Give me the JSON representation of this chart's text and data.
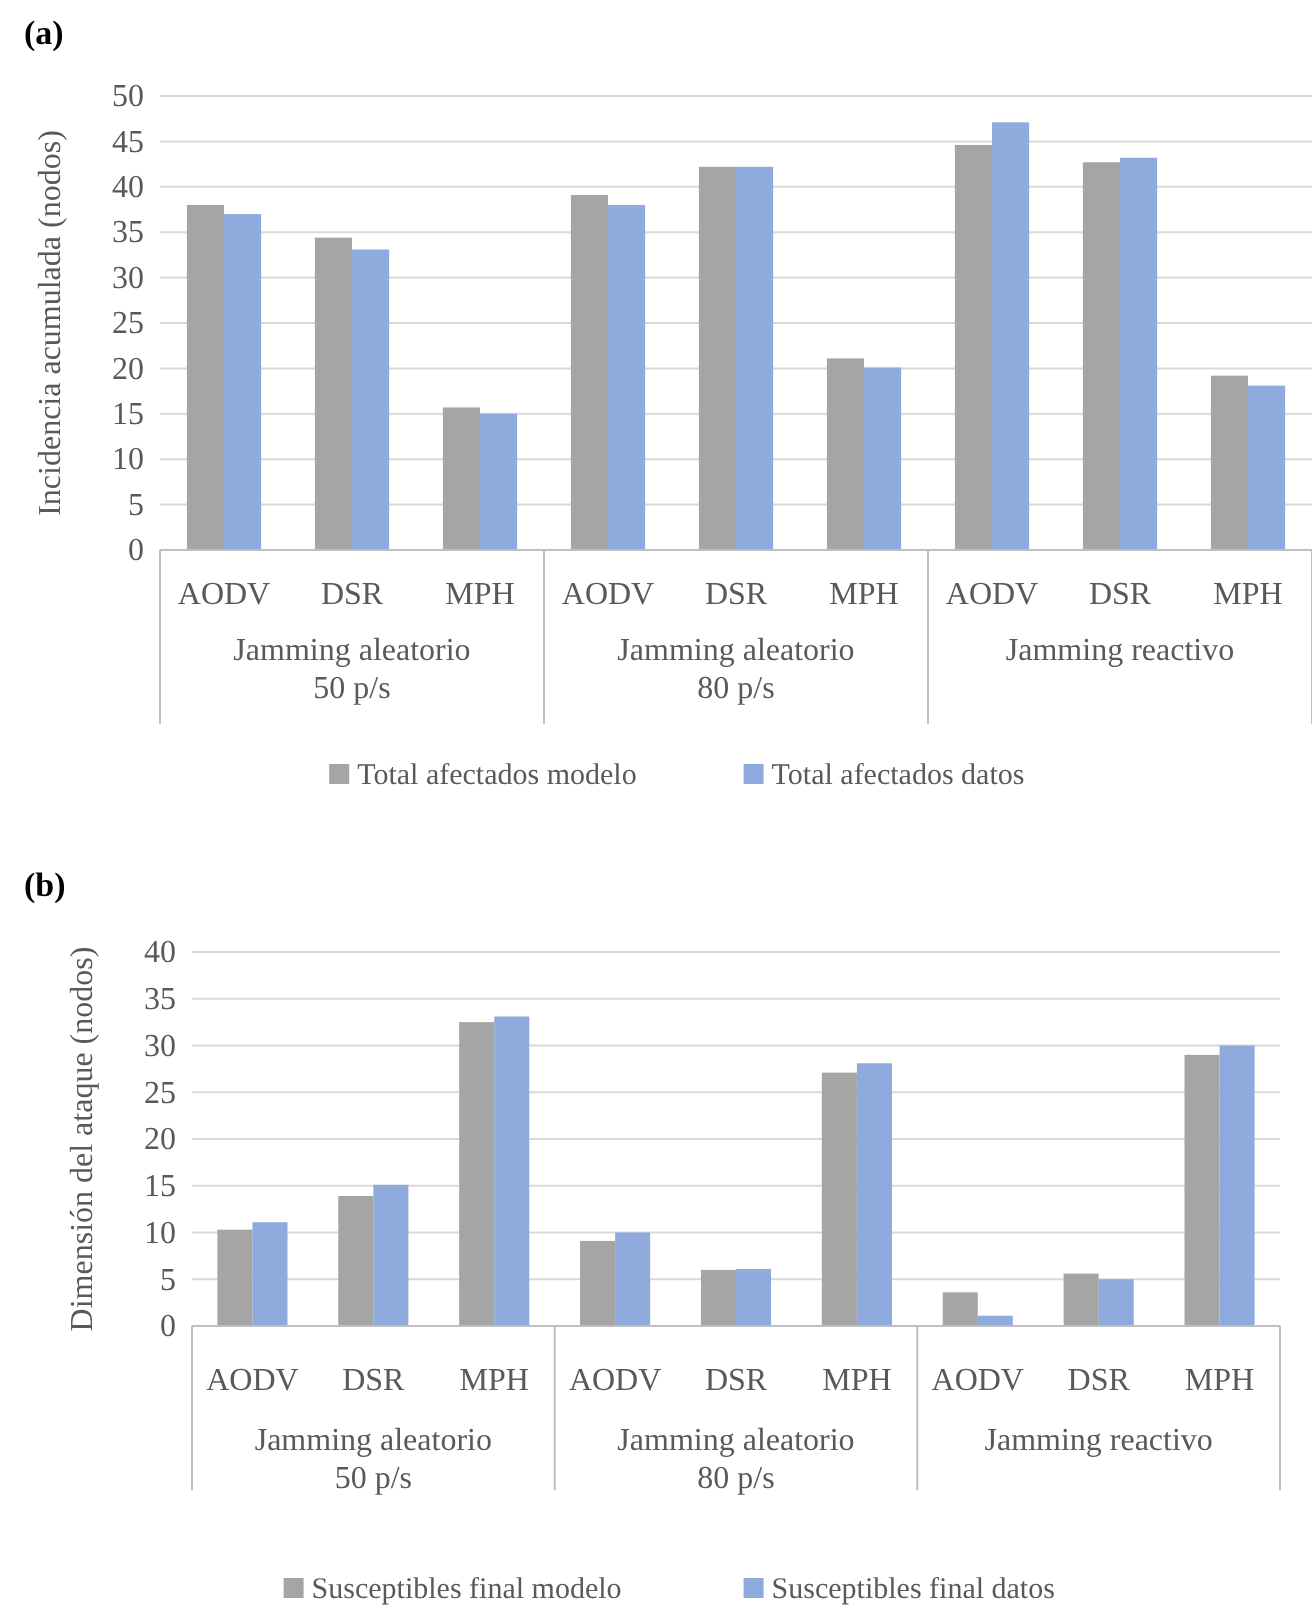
{
  "chart_data": [
    {
      "type": "bar",
      "title": "(a)",
      "ylabel": "Incidencia acumulada (nodos)",
      "categories": [
        "AODV",
        "DSR",
        "MPH",
        "AODV",
        "DSR",
        "MPH",
        "AODV",
        "DSR",
        "MPH"
      ],
      "series": [
        {
          "name": "Total afectados modelo",
          "color": "#a5a5a5",
          "values": [
            38,
            34.4,
            15.7,
            39.1,
            42.2,
            21.1,
            44.6,
            42.7,
            19.2
          ]
        },
        {
          "name": "Total afectados datos",
          "color": "#8faadc",
          "values": [
            37,
            33.1,
            15,
            38,
            42.2,
            20.1,
            47.1,
            43.2,
            18.1
          ]
        }
      ],
      "annotations": [
        "Jamming aleatorio\n50 p/s",
        "Jamming aleatorio\n80 p/s",
        "Jamming reactivo"
      ],
      "ylim": [
        0,
        50
      ],
      "yticks": [
        0,
        5,
        10,
        15,
        20,
        25,
        30,
        35,
        40,
        45,
        50
      ],
      "grid": "y",
      "legend": "bottom"
    },
    {
      "type": "bar",
      "title": "(b)",
      "ylabel": "Dimensión del ataque (nodos)",
      "categories": [
        "AODV",
        "DSR",
        "MPH",
        "AODV",
        "DSR",
        "MPH",
        "AODV",
        "DSR",
        "MPH"
      ],
      "series": [
        {
          "name": "Susceptibles final modelo",
          "color": "#a5a5a5",
          "values": [
            10.3,
            13.9,
            32.5,
            9.1,
            6,
            27.1,
            3.6,
            5.6,
            29
          ]
        },
        {
          "name": "Susceptibles final datos",
          "color": "#8faadc",
          "values": [
            11.1,
            15.1,
            33.1,
            10,
            6.1,
            28.1,
            1.1,
            5,
            30
          ]
        }
      ],
      "annotations": [
        "Jamming aleatorio\n50 p/s",
        "Jamming aleatorio\n80 p/s",
        "Jamming reactivo"
      ],
      "ylim": [
        0,
        40
      ],
      "yticks": [
        0,
        5,
        10,
        15,
        20,
        25,
        30,
        35,
        40
      ],
      "grid": "y",
      "legend": "bottom"
    }
  ]
}
